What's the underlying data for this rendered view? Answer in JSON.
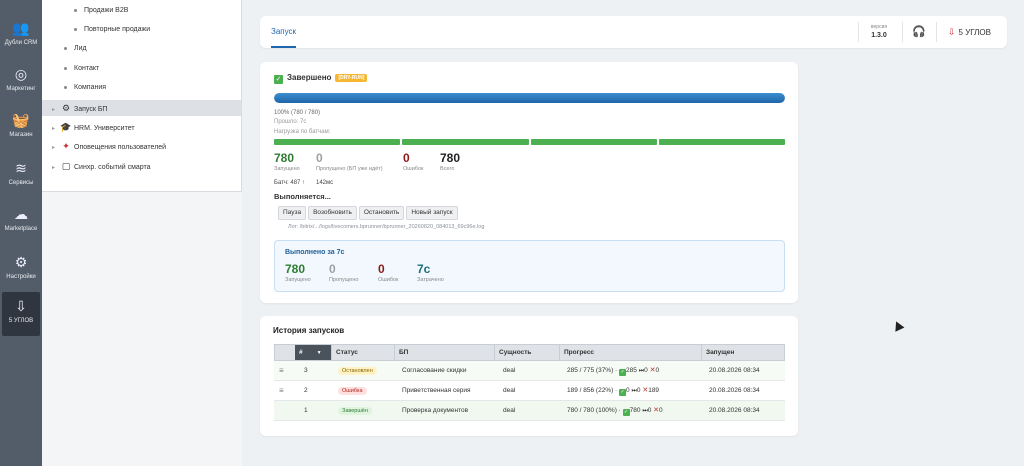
{
  "rail": [
    {
      "icon": "users-icon",
      "glyph": "👥",
      "label": "Дубли CRM"
    },
    {
      "icon": "target-icon",
      "glyph": "◎",
      "label": "Маркетинг"
    },
    {
      "icon": "basket-icon",
      "glyph": "🧺",
      "label": "Магазин"
    },
    {
      "icon": "layers-icon",
      "glyph": "≋",
      "label": "Сервисы"
    },
    {
      "icon": "cloud-download-icon",
      "glyph": "☁",
      "label": "Marketplace"
    },
    {
      "icon": "gear-icon",
      "glyph": "⚙",
      "label": "Настройки"
    },
    {
      "icon": "brand-logo-icon",
      "glyph": "⇩",
      "label": "5 УГЛОВ"
    }
  ],
  "tree": [
    {
      "label": "Продажи B2B",
      "type": "leaf"
    },
    {
      "label": "Повторные продажи",
      "type": "leaf"
    },
    {
      "label": "Лид",
      "type": "leaf"
    },
    {
      "label": "Контакт",
      "type": "leaf"
    },
    {
      "label": "Компания",
      "type": "leaf"
    },
    {
      "label": "Запуск БП",
      "type": "branch"
    },
    {
      "label": "HRM. Университет",
      "type": "branch"
    },
    {
      "label": "Оповещения пользователей",
      "type": "branch"
    },
    {
      "label": "Синхр. событий смарта",
      "type": "branch"
    }
  ],
  "header": {
    "tab": "Запуск",
    "version_label": "версия",
    "version": "1.3.0",
    "brand": "5 УГЛОВ"
  },
  "run": {
    "status": "Завершено",
    "badge": "[DRY-RUN]",
    "progress": 1.0,
    "progress_text": "100% (780 / 780)",
    "elapsed": "Прошло: 7с",
    "batch_label": "Нагрузка по батчам:",
    "batch_segments": 4,
    "stats": [
      {
        "value": "780",
        "label": "Запущено"
      },
      {
        "value": "0",
        "label": "Пропущено (БП уже идёт)"
      },
      {
        "value": "0",
        "label": "Ошибок"
      },
      {
        "value": "780",
        "label": "Всего"
      }
    ],
    "batch_info": "Батч: 487 ↑",
    "batch_ms": "142мс",
    "running": "Выполняется...",
    "buttons": {
      "pause": "Пауза",
      "resume": "Возобновить",
      "stop": "Остановить",
      "new": "Новый запуск"
    },
    "log": "Лог: /bitrix/.../logs/livecomers.bprunner/bprunner_20260820_084013_69c96e.log",
    "done": {
      "title": "Выполнено за 7с",
      "stats": [
        {
          "value": "780",
          "label": "Запущено"
        },
        {
          "value": "0",
          "label": "Пропущено"
        },
        {
          "value": "0",
          "label": "Ошибок"
        },
        {
          "value": "7с",
          "label": "Затрачено"
        }
      ]
    }
  },
  "history": {
    "title": "История запусков",
    "columns": [
      "#",
      "Статус",
      "БП",
      "Сущность",
      "Прогресс",
      "Запущен"
    ],
    "rows": [
      {
        "num": "3",
        "status": "Остановлен",
        "status_kind": "stop",
        "bp": "Согласование скидки",
        "entity": "deal",
        "progress": "285 / 775 (37%) ·",
        "ok": "285",
        "skip": "0",
        "err": "0",
        "started": "20.08.2026 08:34",
        "draggable": true
      },
      {
        "num": "2",
        "status": "Ошибка",
        "status_kind": "err",
        "bp": "Приветственная серия",
        "entity": "deal",
        "progress": "189 / 856 (22%) ·",
        "ok": "0",
        "skip": "0",
        "err": "189",
        "started": "20.08.2026 08:34",
        "draggable": true
      },
      {
        "num": "1",
        "status": "Завершён",
        "status_kind": "ok",
        "bp": "Проверка документов",
        "entity": "deal",
        "progress": "780 / 780 (100%) ·",
        "ok": "780",
        "skip": "0",
        "err": "0",
        "started": "20.08.2026 08:34",
        "draggable": false
      }
    ]
  }
}
